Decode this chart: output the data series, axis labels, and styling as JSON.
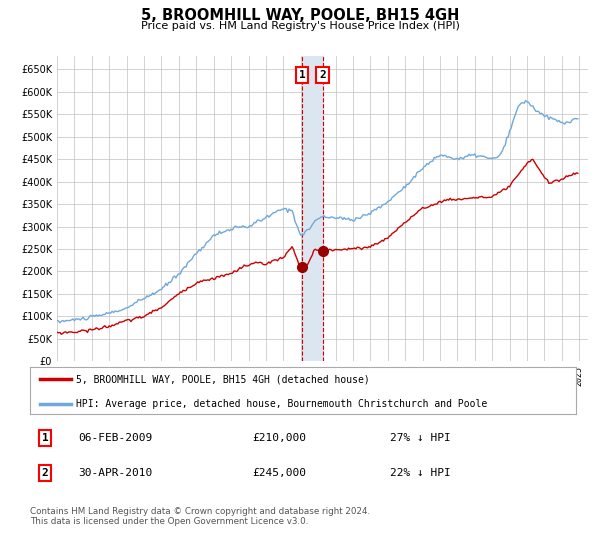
{
  "title": "5, BROOMHILL WAY, POOLE, BH15 4GH",
  "subtitle": "Price paid vs. HM Land Registry's House Price Index (HPI)",
  "legend_line1": "5, BROOMHILL WAY, POOLE, BH15 4GH (detached house)",
  "legend_line2": "HPI: Average price, detached house, Bournemouth Christchurch and Poole",
  "transaction1_date": "06-FEB-2009",
  "transaction1_price": 210000,
  "transaction1_pct": "27% ↓ HPI",
  "transaction2_date": "30-APR-2010",
  "transaction2_price": 245000,
  "transaction2_pct": "22% ↓ HPI",
  "footer": "Contains HM Land Registry data © Crown copyright and database right 2024.\nThis data is licensed under the Open Government Licence v3.0.",
  "hpi_color": "#6fa8dc",
  "price_color": "#cc0000",
  "marker_color": "#990000",
  "vspan_color": "#dce6f1",
  "vline_color": "#cc0000",
  "grid_color": "#c0c0c0",
  "background_color": "#ffffff",
  "ylim": [
    0,
    680000
  ],
  "yticks": [
    0,
    50000,
    100000,
    150000,
    200000,
    250000,
    300000,
    350000,
    400000,
    450000,
    500000,
    550000,
    600000,
    650000
  ]
}
